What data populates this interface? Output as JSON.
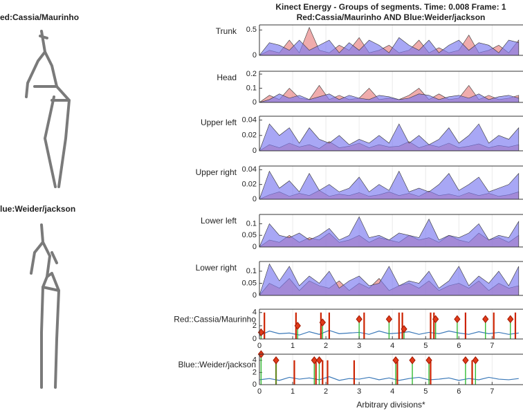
{
  "figure": {
    "skeleton_labels": [
      "ed:Cassia/Maurinho",
      "lue:Weider/jackson"
    ],
    "title_lines": [
      "Kinect Energy - Groups of segments. Time: 0.008 Frame: 1",
      "Red:Cassia/Maurinho  AND Blue:Weider/jackson"
    ]
  },
  "chart_data": [
    {
      "type": "area",
      "ylabel": "Trunk",
      "xlim": [
        0,
        7.95
      ],
      "ylim": [
        0,
        0.6
      ],
      "yticks": [
        0,
        0.5
      ],
      "grid": true,
      "x": [
        0,
        0.3,
        0.6,
        0.9,
        1.2,
        1.5,
        1.8,
        2.1,
        2.4,
        2.7,
        3,
        3.3,
        3.6,
        3.9,
        4.2,
        4.5,
        4.8,
        5.1,
        5.4,
        5.7,
        6,
        6.3,
        6.6,
        6.9,
        7.2,
        7.5,
        7.8
      ],
      "series": [
        {
          "color": "#e88080",
          "values": [
            0,
            0.1,
            0.05,
            0.3,
            0.05,
            0.55,
            0.1,
            0.05,
            0.2,
            0.1,
            0.35,
            0.05,
            0.1,
            0.2,
            0.05,
            0.1,
            0.3,
            0.05,
            0.15,
            0.05,
            0.1,
            0.4,
            0.05,
            0.1,
            0.2,
            0.05,
            0.3
          ]
        },
        {
          "color": "#7a78f0",
          "values": [
            0,
            0.25,
            0.2,
            0.1,
            0.3,
            0.1,
            0.2,
            0.3,
            0.05,
            0.25,
            0.1,
            0.3,
            0.2,
            0.05,
            0.35,
            0.2,
            0.1,
            0.3,
            0.05,
            0.2,
            0.3,
            0.1,
            0.25,
            0.2,
            0.05,
            0.3,
            0.25
          ]
        }
      ]
    },
    {
      "type": "area",
      "ylabel": "Head",
      "xlim": [
        0,
        7.95
      ],
      "ylim": [
        0,
        0.22
      ],
      "yticks": [
        0,
        0.1,
        0.2
      ],
      "grid": true,
      "x": [
        0,
        0.3,
        0.6,
        0.9,
        1.2,
        1.5,
        1.8,
        2.1,
        2.4,
        2.7,
        3,
        3.3,
        3.6,
        3.9,
        4.2,
        4.5,
        4.8,
        5.1,
        5.4,
        5.7,
        6,
        6.3,
        6.6,
        6.9,
        7.2,
        7.5,
        7.8
      ],
      "series": [
        {
          "color": "#e88080",
          "values": [
            0,
            0.05,
            0.02,
            0.1,
            0.03,
            0.02,
            0.12,
            0.02,
            0.05,
            0.02,
            0.03,
            0.1,
            0.02,
            0.03,
            0.02,
            0.05,
            0.1,
            0.02,
            0.06,
            0.02,
            0.03,
            0.12,
            0.02,
            0.05,
            0.02,
            0.03,
            0.05
          ]
        },
        {
          "color": "#7a78f0",
          "values": [
            0,
            0.02,
            0.06,
            0.03,
            0.05,
            0.02,
            0.04,
            0.06,
            0.02,
            0.05,
            0.03,
            0.02,
            0.05,
            0.04,
            0.02,
            0.03,
            0.06,
            0.05,
            0.02,
            0.04,
            0.05,
            0.03,
            0.06,
            0.02,
            0.04,
            0.05,
            0.03
          ]
        }
      ]
    },
    {
      "type": "area",
      "ylabel": "Upper left",
      "xlim": [
        0,
        7.95
      ],
      "ylim": [
        0,
        0.045
      ],
      "yticks": [
        0,
        0.02,
        0.04
      ],
      "grid": true,
      "x": [
        0,
        0.3,
        0.6,
        0.9,
        1.2,
        1.5,
        1.8,
        2.1,
        2.4,
        2.7,
        3,
        3.3,
        3.6,
        3.9,
        4.2,
        4.5,
        4.8,
        5.1,
        5.4,
        5.7,
        6,
        6.3,
        6.6,
        6.9,
        7.2,
        7.5,
        7.8
      ],
      "series": [
        {
          "color": "#e88080",
          "values": [
            0,
            0.008,
            0.004,
            0.01,
            0.005,
            0.008,
            0.003,
            0.012,
            0.004,
            0.006,
            0.01,
            0.004,
            0.008,
            0.005,
            0.006,
            0.012,
            0.004,
            0.008,
            0.005,
            0.01,
            0.004,
            0.006,
            0.009,
            0.004,
            0.007,
            0.005,
            0.008
          ]
        },
        {
          "color": "#7a78f0",
          "values": [
            0,
            0.035,
            0.02,
            0.03,
            0.01,
            0.03,
            0.015,
            0.01,
            0.02,
            0.008,
            0.015,
            0.01,
            0.02,
            0.01,
            0.035,
            0.01,
            0.02,
            0.008,
            0.015,
            0.03,
            0.01,
            0.02,
            0.035,
            0.01,
            0.02,
            0.015,
            0.03
          ]
        }
      ]
    },
    {
      "type": "area",
      "ylabel": "Upper right",
      "xlim": [
        0,
        7.95
      ],
      "ylim": [
        0,
        0.045
      ],
      "yticks": [
        0,
        0.02,
        0.04
      ],
      "grid": true,
      "x": [
        0,
        0.3,
        0.6,
        0.9,
        1.2,
        1.5,
        1.8,
        2.1,
        2.4,
        2.7,
        3,
        3.3,
        3.6,
        3.9,
        4.2,
        4.5,
        4.8,
        5.1,
        5.4,
        5.7,
        6,
        6.3,
        6.6,
        6.9,
        7.2,
        7.5,
        7.8
      ],
      "series": [
        {
          "color": "#e88080",
          "values": [
            0,
            0.006,
            0.01,
            0.004,
            0.008,
            0.005,
            0.012,
            0.004,
            0.007,
            0.005,
            0.009,
            0.004,
            0.006,
            0.01,
            0.005,
            0.008,
            0.004,
            0.011,
            0.005,
            0.007,
            0.004,
            0.009,
            0.005,
            0.008,
            0.004,
            0.006,
            0.01
          ]
        },
        {
          "color": "#7a78f0",
          "values": [
            0,
            0.038,
            0.015,
            0.025,
            0.01,
            0.035,
            0.012,
            0.02,
            0.01,
            0.015,
            0.03,
            0.01,
            0.02,
            0.012,
            0.038,
            0.01,
            0.015,
            0.01,
            0.02,
            0.035,
            0.012,
            0.02,
            0.03,
            0.01,
            0.015,
            0.02,
            0.035
          ]
        }
      ]
    },
    {
      "type": "area",
      "ylabel": "Lower left",
      "xlim": [
        0,
        7.95
      ],
      "ylim": [
        0,
        0.14
      ],
      "yticks": [
        0,
        0.05,
        0.1
      ],
      "grid": true,
      "x": [
        0,
        0.3,
        0.6,
        0.9,
        1.2,
        1.5,
        1.8,
        2.1,
        2.4,
        2.7,
        3,
        3.3,
        3.6,
        3.9,
        4.2,
        4.5,
        4.8,
        5.1,
        5.4,
        5.7,
        6,
        6.3,
        6.6,
        6.9,
        7.2,
        7.5,
        7.8
      ],
      "series": [
        {
          "color": "#e88080",
          "values": [
            0,
            0.03,
            0.02,
            0.05,
            0.02,
            0.04,
            0.03,
            0.06,
            0.02,
            0.03,
            0.05,
            0.02,
            0.04,
            0.03,
            0.02,
            0.05,
            0.03,
            0.04,
            0.02,
            0.05,
            0.03,
            0.02,
            0.06,
            0.03,
            0.04,
            0.02,
            0.05
          ]
        },
        {
          "color": "#7a78f0",
          "values": [
            0,
            0.1,
            0.05,
            0.04,
            0.06,
            0.03,
            0.05,
            0.08,
            0.03,
            0.05,
            0.13,
            0.04,
            0.05,
            0.03,
            0.06,
            0.05,
            0.04,
            0.12,
            0.03,
            0.05,
            0.04,
            0.06,
            0.1,
            0.03,
            0.05,
            0.04,
            0.11
          ]
        }
      ]
    },
    {
      "type": "area",
      "ylabel": "Lower right",
      "xlim": [
        0,
        7.95
      ],
      "ylim": [
        0,
        0.14
      ],
      "yticks": [
        0,
        0.05,
        0.1
      ],
      "grid": true,
      "x": [
        0,
        0.3,
        0.6,
        0.9,
        1.2,
        1.5,
        1.8,
        2.1,
        2.4,
        2.7,
        3,
        3.3,
        3.6,
        3.9,
        4.2,
        4.5,
        4.8,
        5.1,
        5.4,
        5.7,
        6,
        6.3,
        6.6,
        6.9,
        7.2,
        7.5,
        7.8
      ],
      "series": [
        {
          "color": "#e88080",
          "values": [
            0,
            0.05,
            0.03,
            0.07,
            0.02,
            0.06,
            0.04,
            0.03,
            0.06,
            0.02,
            0.05,
            0.03,
            0.07,
            0.02,
            0.04,
            0.05,
            0.03,
            0.06,
            0.02,
            0.04,
            0.05,
            0.03,
            0.06,
            0.02,
            0.05,
            0.03,
            0.04
          ]
        },
        {
          "color": "#7a78f0",
          "values": [
            0,
            0.13,
            0.06,
            0.12,
            0.04,
            0.08,
            0.05,
            0.1,
            0.03,
            0.06,
            0.08,
            0.04,
            0.05,
            0.12,
            0.04,
            0.06,
            0.05,
            0.1,
            0.03,
            0.06,
            0.12,
            0.04,
            0.08,
            0.05,
            0.1,
            0.04,
            0.12
          ]
        }
      ]
    },
    {
      "type": "stem",
      "ylabel": "Red::Cassia/Maurinho",
      "xlim": [
        0,
        7.95
      ],
      "ylim": [
        0,
        4.5
      ],
      "yticks": [
        0,
        2,
        4
      ],
      "xticks": [
        0,
        1,
        2,
        3,
        4,
        5,
        6,
        7
      ],
      "grid": true,
      "x": [
        0,
        0.3,
        0.6,
        0.9,
        1.2,
        1.5,
        1.8,
        2.1,
        2.4,
        2.7,
        3,
        3.3,
        3.6,
        3.9,
        4.2,
        4.5,
        4.8,
        5.1,
        5.4,
        5.7,
        6,
        6.3,
        6.6,
        6.9,
        7.2,
        7.5,
        7.8
      ],
      "values": [
        0.5,
        1.2,
        0.8,
        0.9,
        0.6,
        1.1,
        0.7,
        1.3,
        0.8,
        0.9,
        1.0,
        0.7,
        1.2,
        0.8,
        0.9,
        1.1,
        0.7,
        1.0,
        0.8,
        1.2,
        0.9,
        0.7,
        1.1,
        0.8,
        1.0,
        0.7,
        0.9
      ],
      "line_color": "#3a78b8",
      "stems": [
        {
          "color": "#cc2200",
          "x": [
            0.15,
            1.1,
            1.85,
            2.1,
            3.15,
            4.2,
            4.3,
            5.15,
            5.25,
            6.2,
            7.05,
            7.7
          ],
          "values": [
            4,
            4,
            4,
            4,
            4,
            4,
            4,
            4,
            4,
            4,
            4,
            4
          ]
        },
        {
          "color": "#33bb33",
          "marker": "diamond",
          "x": [
            0.05,
            1.15,
            1.9,
            3.0,
            3.9,
            4.35,
            5.3,
            5.95,
            6.8,
            7.55
          ],
          "values": [
            1,
            2,
            2.5,
            3,
            3,
            1.5,
            3,
            3,
            3,
            3
          ]
        }
      ]
    },
    {
      "type": "stem",
      "ylabel": "Blue::Weider/jackson",
      "xlabel": "Arbitrary divisions*",
      "xlim": [
        0,
        7.95
      ],
      "ylim": [
        0,
        5
      ],
      "yticks": [
        0,
        2,
        4
      ],
      "xticks": [
        0,
        1,
        2,
        3,
        4,
        5,
        6,
        7
      ],
      "grid": true,
      "x": [
        0,
        0.3,
        0.6,
        0.9,
        1.2,
        1.5,
        1.8,
        2.1,
        2.4,
        2.7,
        3,
        3.3,
        3.6,
        3.9,
        4.2,
        4.5,
        4.8,
        5.1,
        5.4,
        5.7,
        6,
        6.3,
        6.6,
        6.9,
        7.2,
        7.5,
        7.8
      ],
      "values": [
        0.8,
        1.0,
        0.7,
        1.2,
        0.9,
        1.1,
        0.8,
        1.3,
        0.7,
        1.0,
        0.9,
        1.2,
        0.8,
        1.1,
        0.7,
        1.0,
        1.2,
        0.8,
        0.9,
        1.1,
        0.7,
        1.0,
        0.8,
        1.2,
        0.9,
        0.8,
        1.0
      ],
      "line_color": "#3a78b8",
      "stems": [
        {
          "color": "#cc2200",
          "x": [
            0.5,
            1.05,
            1.7,
            1.9,
            2.05,
            2.85,
            4.15,
            5.15,
            6.4
          ],
          "values": [
            4,
            4,
            4,
            4,
            4,
            4,
            4,
            4,
            4
          ]
        },
        {
          "color": "#33bb33",
          "marker": "diamond",
          "x": [
            0.05,
            0.5,
            1.65,
            1.8,
            4.1,
            4.6,
            5.1,
            6.2,
            6.5
          ],
          "values": [
            5,
            4,
            4,
            4,
            4,
            4,
            4,
            4,
            4
          ]
        }
      ]
    }
  ]
}
